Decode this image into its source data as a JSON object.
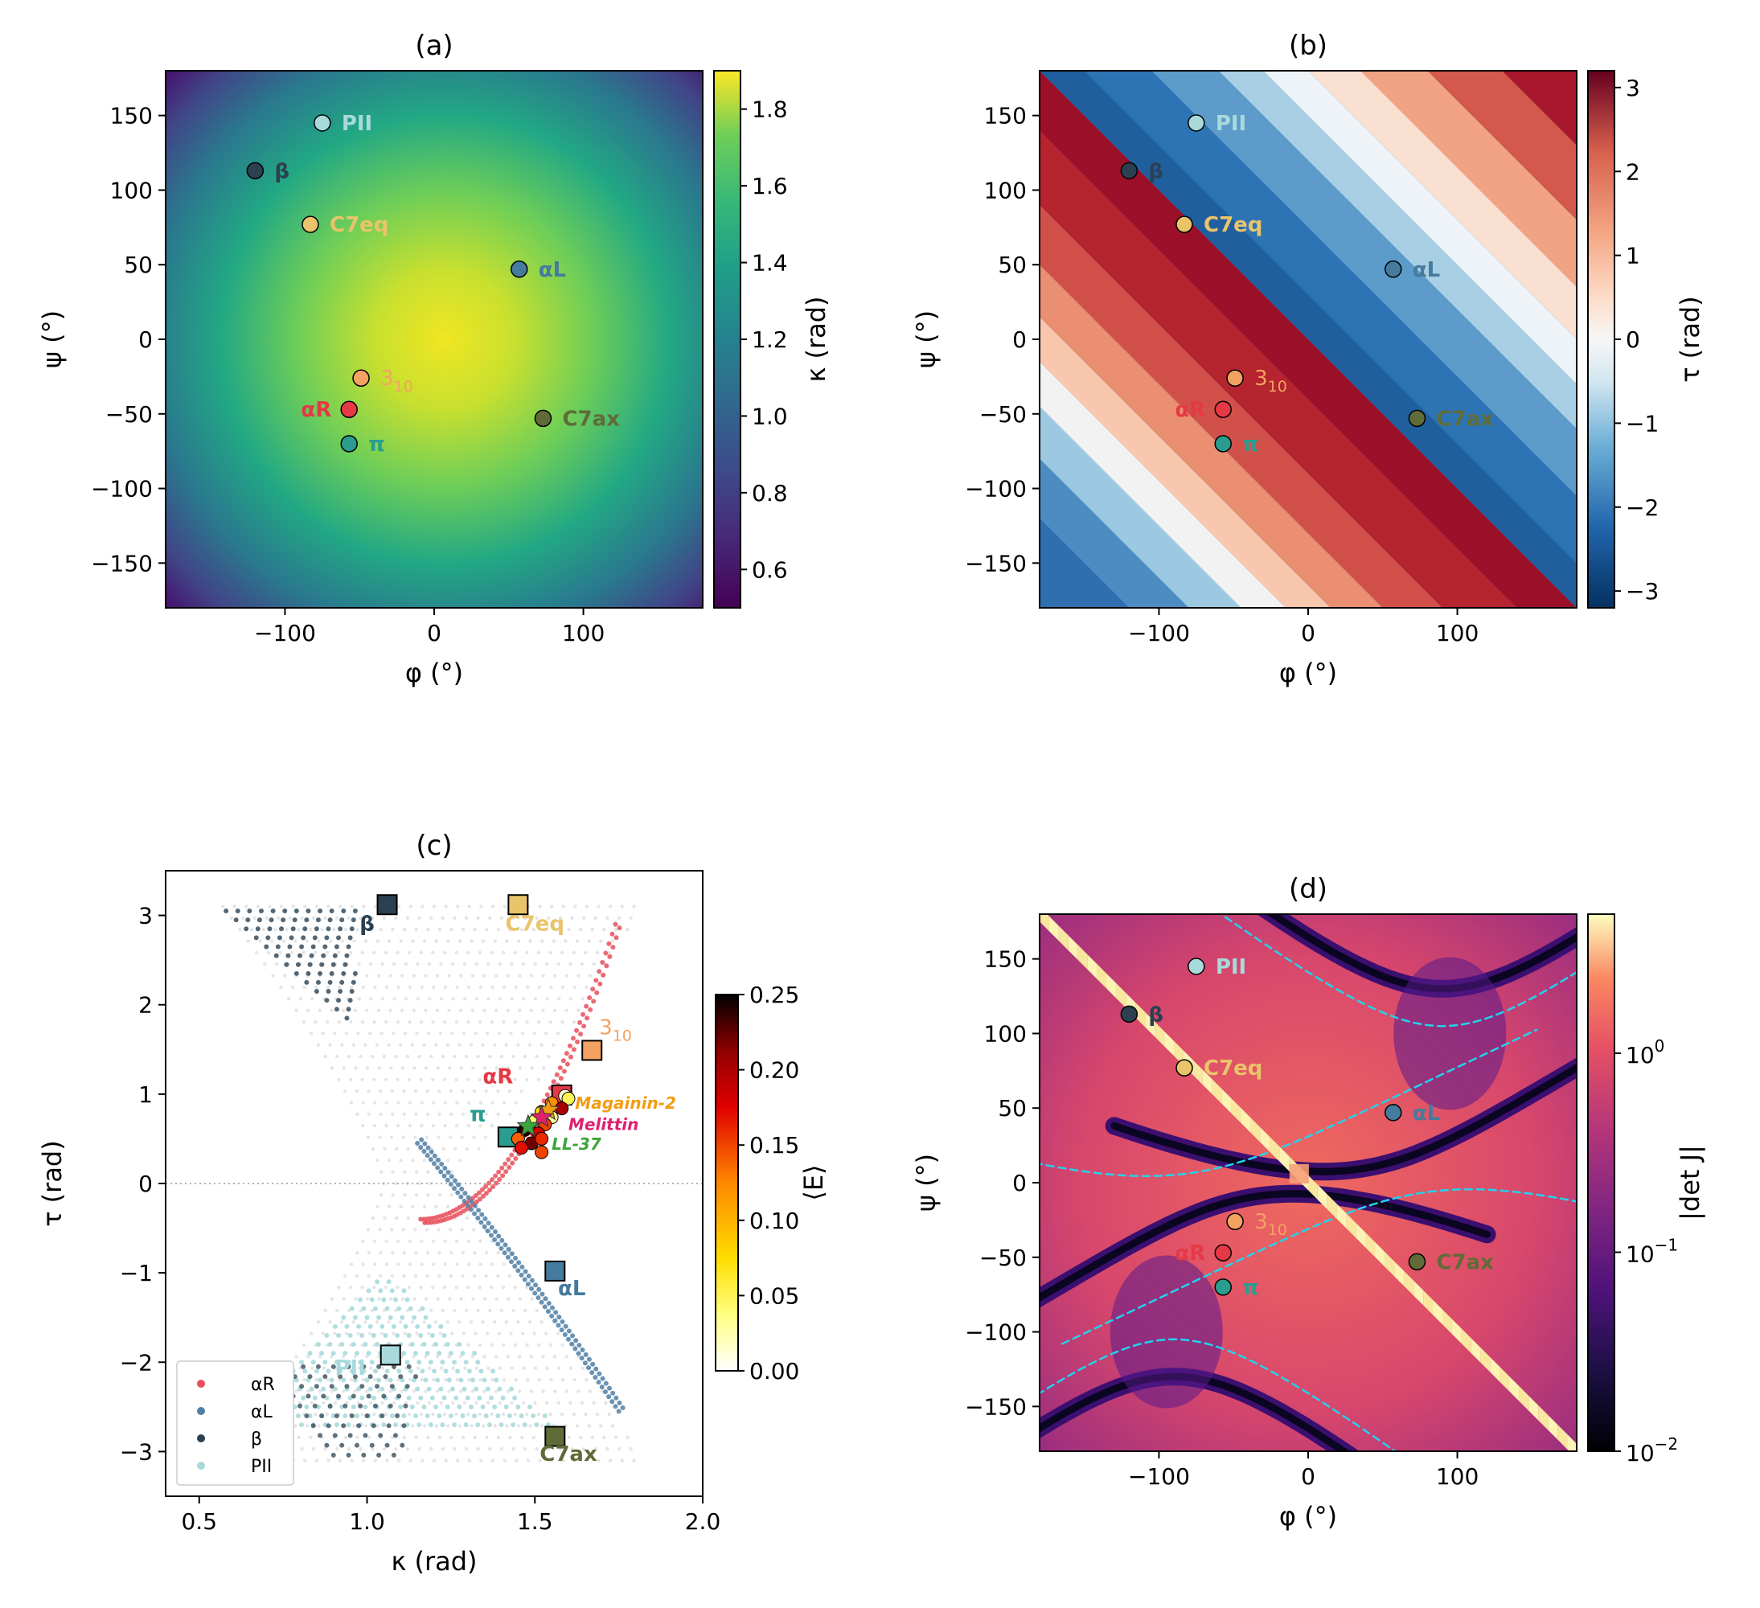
{
  "chart_data": [
    {
      "panel": "(a)",
      "type": "heatmap",
      "title": "(a)",
      "xlabel": "φ (°)",
      "ylabel": "ψ (°)",
      "xlim": [
        -180,
        180
      ],
      "ylim": [
        -180,
        180
      ],
      "xticks": [
        "−100",
        "0",
        "100"
      ],
      "xtick_values": [
        -100,
        0,
        100
      ],
      "yticks": [
        "150",
        "100",
        "50",
        "0",
        "−50",
        "−100",
        "−150"
      ],
      "ytick_values": [
        150,
        100,
        50,
        0,
        -50,
        -100,
        -150
      ],
      "colorbar": {
        "label": "κ (rad)",
        "min": 0.5,
        "max": 1.9,
        "cmap": "viridis",
        "ticks": [
          "0.6",
          "0.8",
          "1.0",
          "1.2",
          "1.4",
          "1.6",
          "1.8"
        ],
        "tick_values": [
          0.6,
          0.8,
          1.0,
          1.2,
          1.4,
          1.6,
          1.8
        ]
      }
    },
    {
      "panel": "(b)",
      "type": "heatmap",
      "title": "(b)",
      "xlabel": "φ (°)",
      "ylabel": "ψ (°)",
      "xlim": [
        -180,
        180
      ],
      "ylim": [
        -180,
        180
      ],
      "xticks": [
        "−100",
        "0",
        "100"
      ],
      "xtick_values": [
        -100,
        0,
        100
      ],
      "yticks": [
        "150",
        "100",
        "50",
        "0",
        "−50",
        "−100",
        "−150"
      ],
      "ytick_values": [
        150,
        100,
        50,
        0,
        -50,
        -100,
        -150
      ],
      "colorbar": {
        "label": "τ (rad)",
        "min": -3.2,
        "max": 3.2,
        "cmap": "RdBu_r",
        "ticks": [
          "3",
          "2",
          "1",
          "0",
          "−1",
          "−2",
          "−3"
        ],
        "tick_values": [
          3,
          2,
          1,
          0,
          -1,
          -2,
          -3
        ]
      }
    },
    {
      "panel": "(c)",
      "type": "scatter",
      "title": "(c)",
      "xlabel": "κ (rad)",
      "ylabel": "τ (rad)",
      "xlim": [
        0.4,
        2.0
      ],
      "ylim": [
        -3.5,
        3.5
      ],
      "xticks": [
        "0.5",
        "1.0",
        "1.5",
        "2.0"
      ],
      "xtick_values": [
        0.5,
        1.0,
        1.5,
        2.0
      ],
      "yticks": [
        "3",
        "2",
        "1",
        "0",
        "−1",
        "−2",
        "−3"
      ],
      "ytick_values": [
        3,
        2,
        1,
        0,
        -1,
        -2,
        -3
      ],
      "legend": {
        "position": "lower-left",
        "entries": [
          {
            "label": "αR",
            "color": "#e8505b"
          },
          {
            "label": "αL",
            "color": "#4f7fa6"
          },
          {
            "label": "β",
            "color": "#2b4151"
          },
          {
            "label": "PII",
            "color": "#a8dadc"
          }
        ]
      },
      "colorbar": {
        "label": "⟨E⟩",
        "min": 0.0,
        "max": 0.25,
        "cmap": "hot_r",
        "ticks": [
          "0.25",
          "0.20",
          "0.15",
          "0.10",
          "0.05",
          "0.00"
        ],
        "tick_values": [
          0.25,
          0.2,
          0.15,
          0.1,
          0.05,
          0.0
        ]
      },
      "square_markers": [
        {
          "name": "β",
          "kappa": 1.06,
          "tau": 3.12,
          "color": "#2b4151",
          "label_dx": -0.06,
          "label_dy": -0.22
        },
        {
          "name": "C7eq",
          "kappa": 1.45,
          "tau": 3.12,
          "color": "#e9c46a",
          "label_dx": 0.05,
          "label_dy": -0.22
        },
        {
          "name": "310",
          "kappa": 1.67,
          "tau": 1.49,
          "color": "#f4a261",
          "label_dx": 0.07,
          "label_dy": 0.25
        },
        {
          "name": "αR",
          "kappa": 1.58,
          "tau": 0.99,
          "color": "#e63946",
          "label_dx": -0.19,
          "label_dy": 0.2
        },
        {
          "name": "π",
          "kappa": 1.42,
          "tau": 0.52,
          "color": "#2a9d8f",
          "label_dx": -0.09,
          "label_dy": 0.25
        },
        {
          "name": "αL",
          "kappa": 1.56,
          "tau": -0.98,
          "color": "#457b9d",
          "label_dx": 0.05,
          "label_dy": -0.2
        },
        {
          "name": "PII",
          "kappa": 1.07,
          "tau": -1.92,
          "color": "#a8dadc",
          "label_dx": -0.12,
          "label_dy": -0.15
        },
        {
          "name": "C7ax",
          "kappa": 1.56,
          "tau": -2.83,
          "color": "#606c38",
          "label_dx": 0.04,
          "label_dy": -0.2
        }
      ],
      "peptides": [
        {
          "name": "Magainin-2",
          "color": "#f39c12",
          "label_kappa": 1.62,
          "label_tau": 0.9
        },
        {
          "name": "Melittin",
          "color": "#e0206e",
          "label_kappa": 1.6,
          "label_tau": 0.66
        },
        {
          "name": "LL-37",
          "color": "#3aa63a",
          "label_kappa": 1.55,
          "label_tau": 0.44
        }
      ],
      "peptide_points": [
        {
          "kappa": 1.59,
          "tau": 0.98,
          "E": 0.01
        },
        {
          "kappa": 1.6,
          "tau": 0.95,
          "E": 0.05
        },
        {
          "kappa": 1.55,
          "tau": 0.9,
          "E": 0.12
        },
        {
          "kappa": 1.58,
          "tau": 0.84,
          "E": 0.2
        },
        {
          "kappa": 1.52,
          "tau": 0.8,
          "E": 0.08
        },
        {
          "kappa": 1.55,
          "tau": 0.74,
          "E": 0.03
        },
        {
          "kappa": 1.5,
          "tau": 0.7,
          "E": 0.04
        },
        {
          "kappa": 1.53,
          "tau": 0.66,
          "E": 0.15
        },
        {
          "kappa": 1.47,
          "tau": 0.6,
          "E": 0.24
        },
        {
          "kappa": 1.51,
          "tau": 0.56,
          "E": 0.18
        },
        {
          "kappa": 1.45,
          "tau": 0.5,
          "E": 0.14
        },
        {
          "kappa": 1.49,
          "tau": 0.45,
          "E": 0.22
        },
        {
          "kappa": 1.52,
          "tau": 0.5,
          "E": 0.16
        },
        {
          "kappa": 1.46,
          "tau": 0.4,
          "E": 0.17
        },
        {
          "kappa": 1.52,
          "tau": 0.35,
          "E": 0.15
        }
      ],
      "peptide_means": [
        {
          "name": "Magainin-2",
          "kappa": 1.54,
          "tau": 0.82
        },
        {
          "name": "Melittin",
          "kappa": 1.52,
          "tau": 0.74
        },
        {
          "name": "LL-37",
          "kappa": 1.48,
          "tau": 0.64
        }
      ]
    },
    {
      "panel": "(d)",
      "type": "heatmap",
      "title": "(d)",
      "xlabel": "φ (°)",
      "ylabel": "ψ (°)",
      "xlim": [
        -180,
        180
      ],
      "ylim": [
        -180,
        180
      ],
      "xticks": [
        "−100",
        "0",
        "100"
      ],
      "xtick_values": [
        -100,
        0,
        100
      ],
      "yticks": [
        "150",
        "100",
        "50",
        "0",
        "−50",
        "−100",
        "−150"
      ],
      "ytick_values": [
        150,
        100,
        50,
        0,
        -50,
        -100,
        -150
      ],
      "colorbar": {
        "label": "|det J|",
        "scale": "log",
        "min": 0.01,
        "max": 5.0,
        "cmap": "magma",
        "ticks": [
          {
            "base": "10",
            "exp": "0",
            "value": 1
          },
          {
            "base": "10",
            "exp": "−1",
            "value": 0.1
          },
          {
            "base": "10",
            "exp": "−2",
            "value": 0.01
          }
        ]
      }
    }
  ],
  "conformations": [
    {
      "name": "PII",
      "label_main": "PII",
      "label_sub": "",
      "phi": -75,
      "psi": 145,
      "color": "#a8dadc",
      "label_side": "right"
    },
    {
      "name": "β",
      "label_main": "β",
      "label_sub": "",
      "phi": -120,
      "psi": 113,
      "color": "#2b4151",
      "label_side": "right"
    },
    {
      "name": "C7eq",
      "label_main": "C7eq",
      "label_sub": "",
      "phi": -83,
      "psi": 77,
      "color": "#e9c46a",
      "label_side": "right"
    },
    {
      "name": "αL",
      "label_main": "αL",
      "label_sub": "",
      "phi": 57,
      "psi": 47,
      "color": "#457b9d",
      "label_side": "right"
    },
    {
      "name": "310",
      "label_main": "3",
      "label_sub": "10",
      "phi": -49,
      "psi": -26,
      "color": "#f4a261",
      "label_side": "right"
    },
    {
      "name": "αR",
      "label_main": "αR",
      "label_sub": "",
      "phi": -57,
      "psi": -47,
      "color": "#e63946",
      "label_side": "left"
    },
    {
      "name": "π",
      "label_main": "π",
      "label_sub": "",
      "phi": -57,
      "psi": -70,
      "color": "#2a9d8f",
      "label_side": "right"
    },
    {
      "name": "C7ax",
      "label_main": "C7ax",
      "label_sub": "",
      "phi": 73,
      "psi": -53,
      "color": "#606c38",
      "label_side": "right"
    }
  ]
}
